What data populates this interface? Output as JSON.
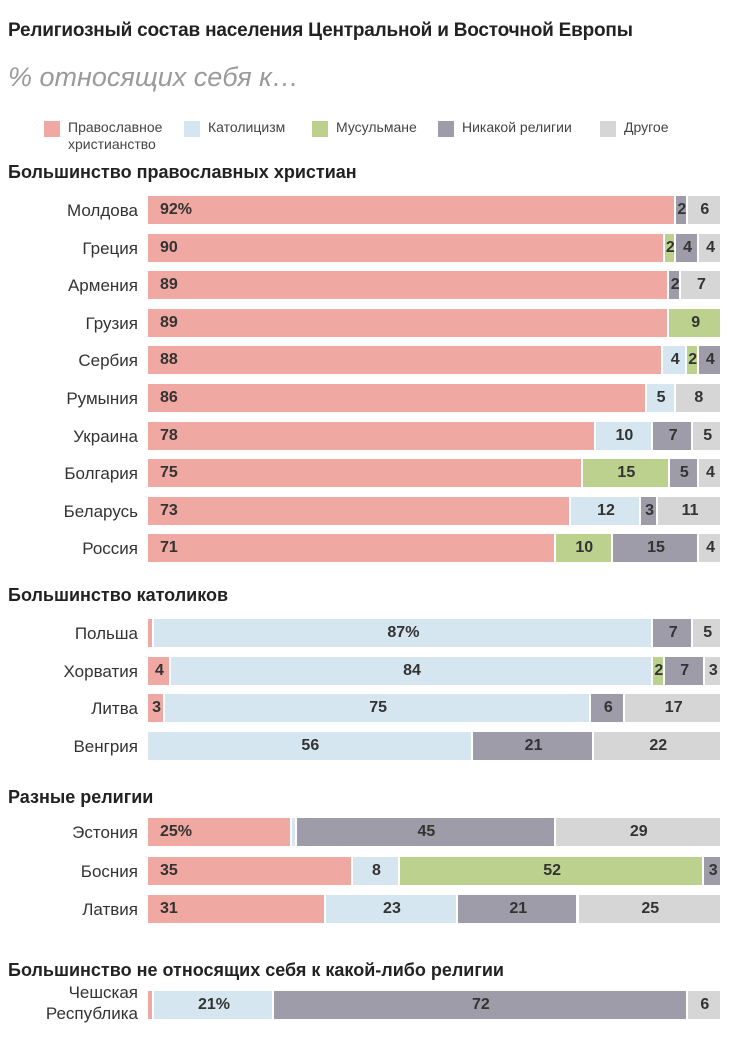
{
  "title": "Религиозный состав населения Центральной и Восточной Европы",
  "subtitle": "% относящих себя к…",
  "legend": [
    {
      "key": "orthodox",
      "label": "Православное христианство",
      "color": "#f0a8a2"
    },
    {
      "key": "catholic",
      "label": "Католицизм",
      "color": "#d6e6f0"
    },
    {
      "key": "muslim",
      "label": "Мусульмане",
      "color": "#bdd18e"
    },
    {
      "key": "none",
      "label": "Никакой религии",
      "color": "#9e9ca8"
    },
    {
      "key": "other",
      "label": "Другое",
      "color": "#d6d6d6"
    }
  ],
  "chart_data": {
    "type": "bar",
    "orientation": "horizontal-stacked",
    "unit": "%",
    "series_order": [
      "orthodox",
      "catholic",
      "muslim",
      "none",
      "other"
    ],
    "groups": [
      {
        "title": "Большинство православных христиан",
        "rows": [
          {
            "country": "Молдова",
            "values": {
              "orthodox": 92,
              "none": 2,
              "other": 6
            },
            "first_label": "92%"
          },
          {
            "country": "Греция",
            "values": {
              "orthodox": 90,
              "muslim": 2,
              "none": 4,
              "other": 4
            }
          },
          {
            "country": "Армения",
            "values": {
              "orthodox": 89,
              "none": 2,
              "other": 7
            }
          },
          {
            "country": "Грузия",
            "values": {
              "orthodox": 89,
              "muslim": 9
            }
          },
          {
            "country": "Сербия",
            "values": {
              "orthodox": 88,
              "catholic": 4,
              "muslim": 2,
              "none": 4
            }
          },
          {
            "country": "Румыния",
            "values": {
              "orthodox": 86,
              "catholic": 5,
              "other": 8
            }
          },
          {
            "country": "Украина",
            "values": {
              "orthodox": 78,
              "catholic": 10,
              "none": 7,
              "other": 5
            }
          },
          {
            "country": "Болгария",
            "values": {
              "orthodox": 75,
              "muslim": 15,
              "none": 5,
              "other": 4
            }
          },
          {
            "country": "Беларусь",
            "values": {
              "orthodox": 73,
              "catholic": 12,
              "none": 3,
              "other": 11
            }
          },
          {
            "country": "Россия",
            "values": {
              "orthodox": 71,
              "muslim": 10,
              "none": 15,
              "other": 4
            }
          }
        ]
      },
      {
        "title": "Большинство католиков",
        "rows": [
          {
            "country": "Польша",
            "values": {
              "orthodox": 1,
              "catholic": 87,
              "none": 7,
              "other": 5
            },
            "catholic_label": "87%"
          },
          {
            "country": "Хорватия",
            "values": {
              "orthodox": 4,
              "catholic": 84,
              "muslim": 2,
              "none": 7,
              "other": 3
            }
          },
          {
            "country": "Литва",
            "values": {
              "orthodox": 3,
              "catholic": 75,
              "none": 6,
              "other": 17
            }
          },
          {
            "country": "Венгрия",
            "values": {
              "catholic": 56,
              "none": 21,
              "other": 22
            }
          }
        ]
      },
      {
        "title": "Разные религии",
        "rows": [
          {
            "country": "Эстония",
            "values": {
              "orthodox": 25,
              "catholic": 1,
              "none": 45,
              "other": 29
            },
            "first_label": "25%"
          },
          {
            "country": "Босния",
            "values": {
              "orthodox": 35,
              "catholic": 8,
              "muslim": 52,
              "none": 3
            }
          },
          {
            "country": "Латвия",
            "values": {
              "orthodox": 31,
              "catholic": 23,
              "none": 21,
              "other": 25
            }
          }
        ]
      },
      {
        "title": "Большинство не относящих себя к какой-либо религии",
        "rows": [
          {
            "country": "Чешская Республика",
            "country_lines": [
              "Чешская",
              "Республика"
            ],
            "values": {
              "orthodox": 1,
              "catholic": 21,
              "none": 72,
              "other": 6
            },
            "catholic_label": "21%"
          }
        ]
      }
    ]
  }
}
